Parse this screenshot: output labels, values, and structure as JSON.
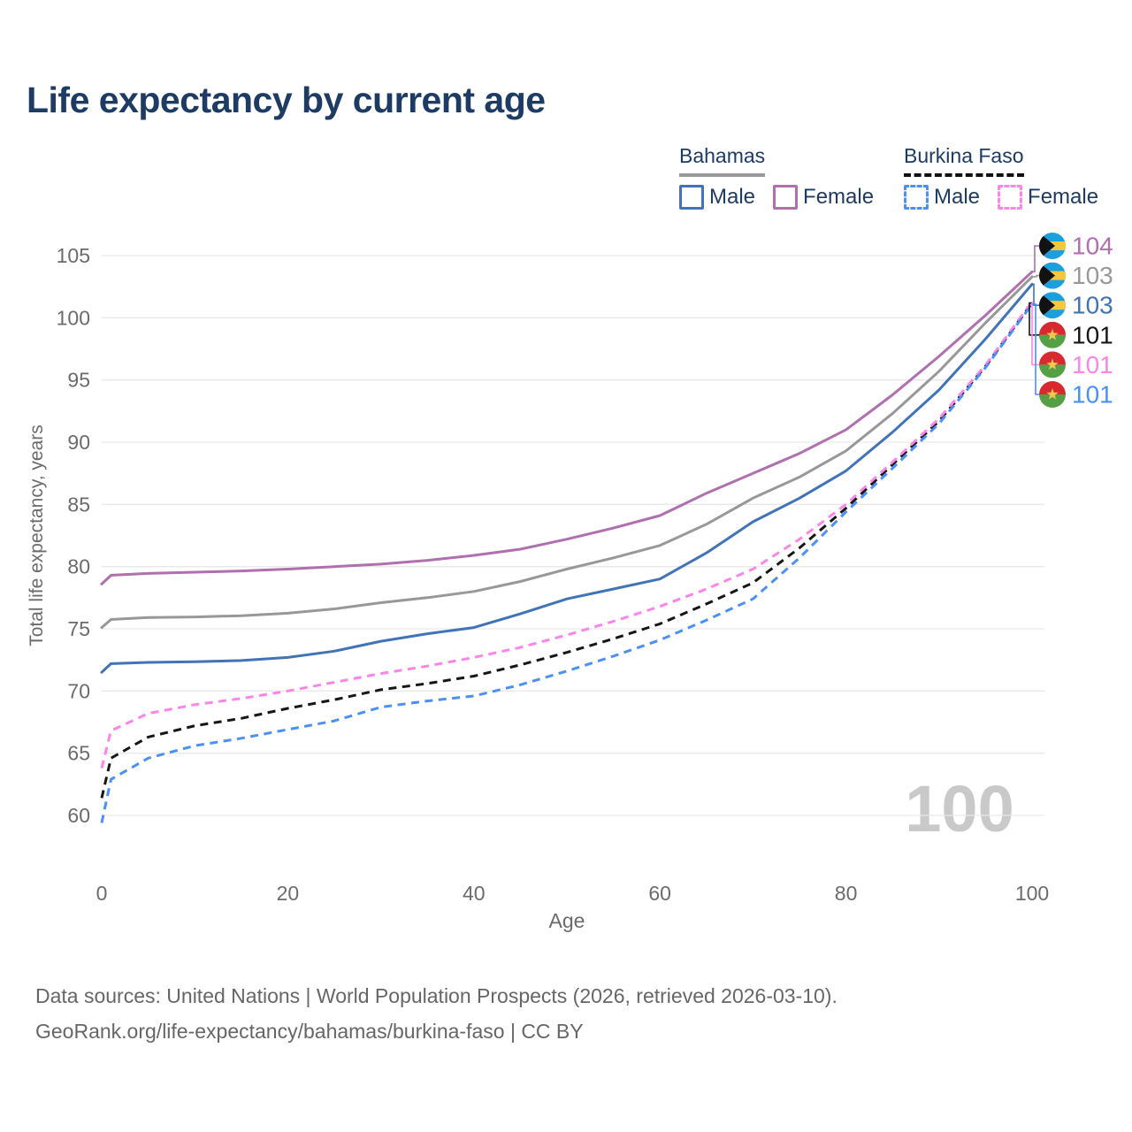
{
  "title": "Life expectancy by current age",
  "legend": {
    "groups": [
      {
        "name": "Bahamas",
        "underline_style": "solid",
        "underline_color": "#999999",
        "items": [
          {
            "label": "Male",
            "color": "#4173b8",
            "dashed": false
          },
          {
            "label": "Female",
            "color": "#b06fae",
            "dashed": false
          }
        ]
      },
      {
        "name": "Burkina Faso",
        "underline_style": "dashed",
        "underline_color": "#111111",
        "items": [
          {
            "label": "Male",
            "color": "#4a90f5",
            "dashed": true
          },
          {
            "label": "Female",
            "color": "#fb85e9",
            "dashed": true
          }
        ]
      }
    ]
  },
  "chart_data": {
    "type": "line",
    "title": "Life expectancy by current age",
    "xlabel": "Age",
    "ylabel": "Total life expectancy, years",
    "xlim": [
      0,
      100
    ],
    "ylim": [
      60,
      105
    ],
    "xticks": [
      0,
      20,
      40,
      60,
      80,
      100
    ],
    "yticks": [
      60,
      65,
      70,
      75,
      80,
      85,
      90,
      95,
      100,
      105
    ],
    "grid": "horizontal",
    "legend_position": "top-right",
    "watermark": "100",
    "x": [
      0,
      1,
      5,
      10,
      15,
      20,
      25,
      30,
      35,
      40,
      45,
      50,
      55,
      60,
      65,
      70,
      75,
      80,
      85,
      90,
      95,
      100
    ],
    "series": [
      {
        "id": "bahamas-female",
        "name": "Bahamas Female",
        "country": "Bahamas",
        "sex": "Female",
        "color": "#b06fae",
        "dashed": false,
        "end_label": "104",
        "flag": "bahamas",
        "values": [
          78.6,
          79.3,
          79.45,
          79.55,
          79.65,
          79.8,
          80.0,
          80.2,
          80.5,
          80.9,
          81.4,
          82.2,
          83.1,
          84.1,
          85.9,
          87.5,
          89.1,
          91.0,
          93.8,
          96.9,
          100.2,
          103.7
        ]
      },
      {
        "id": "bahamas-total",
        "name": "Bahamas Both sexes",
        "country": "Bahamas",
        "sex": "Both",
        "color": "#989898",
        "dashed": false,
        "end_label": "103",
        "flag": "bahamas",
        "values": [
          75.1,
          75.75,
          75.9,
          75.95,
          76.05,
          76.25,
          76.6,
          77.1,
          77.5,
          78.0,
          78.8,
          79.8,
          80.7,
          81.7,
          83.4,
          85.5,
          87.2,
          89.3,
          92.3,
          95.7,
          99.6,
          103.3
        ]
      },
      {
        "id": "bahamas-male",
        "name": "Bahamas Male",
        "country": "Bahamas",
        "sex": "Male",
        "color": "#4173b8",
        "dashed": false,
        "end_label": "103",
        "flag": "bahamas",
        "values": [
          71.5,
          72.2,
          72.3,
          72.35,
          72.45,
          72.7,
          73.2,
          74.0,
          74.6,
          75.1,
          76.2,
          77.4,
          78.2,
          79.0,
          81.1,
          83.6,
          85.5,
          87.7,
          90.8,
          94.2,
          98.3,
          102.7
        ]
      },
      {
        "id": "burkina-total",
        "name": "Burkina Faso Both sexes",
        "country": "Burkina Faso",
        "sex": "Both",
        "color": "#161616",
        "dashed": true,
        "end_label": "101",
        "flag": "burkina",
        "values": [
          61.4,
          64.6,
          66.3,
          67.2,
          67.8,
          68.6,
          69.3,
          70.1,
          70.6,
          71.2,
          72.1,
          73.1,
          74.2,
          75.4,
          77.0,
          78.7,
          81.5,
          84.7,
          88.2,
          91.7,
          96.1,
          101.2
        ]
      },
      {
        "id": "burkina-female",
        "name": "Burkina Faso Female",
        "country": "Burkina Faso",
        "sex": "Female",
        "color": "#fb85e9",
        "dashed": true,
        "end_label": "101",
        "flag": "burkina",
        "values": [
          63.8,
          66.8,
          68.2,
          68.9,
          69.4,
          70.0,
          70.7,
          71.4,
          72.0,
          72.7,
          73.5,
          74.5,
          75.6,
          76.8,
          78.2,
          79.8,
          82.2,
          85.0,
          88.4,
          91.9,
          96.2,
          101.3
        ]
      },
      {
        "id": "burkina-male",
        "name": "Burkina Faso Male",
        "country": "Burkina Faso",
        "sex": "Male",
        "color": "#4a90f5",
        "dashed": true,
        "end_label": "101",
        "flag": "burkina",
        "values": [
          59.4,
          62.9,
          64.6,
          65.6,
          66.2,
          66.9,
          67.6,
          68.7,
          69.2,
          69.6,
          70.5,
          71.6,
          72.8,
          74.1,
          75.7,
          77.4,
          80.7,
          84.4,
          87.9,
          91.5,
          96.0,
          101.1
        ]
      }
    ],
    "flags": {
      "bahamas": {
        "aquamarine": "#1ba0dd",
        "gold": "#f8c83c",
        "black": "#121212"
      },
      "burkina": {
        "red": "#d8292f",
        "green": "#55a046",
        "star": "#f2c94c"
      }
    },
    "colors": {
      "grid": "#e9e9e9",
      "tick_text": "#6b6b6b",
      "watermark": "#c9c9c9",
      "title_text": "#1d3b63"
    }
  },
  "footer": {
    "line1": "Data sources: United Nations | World Population Prospects (2026, retrieved 2026-03-10).",
    "line2": "GeoRank.org/life-expectancy/bahamas/burkina-faso | CC BY"
  }
}
